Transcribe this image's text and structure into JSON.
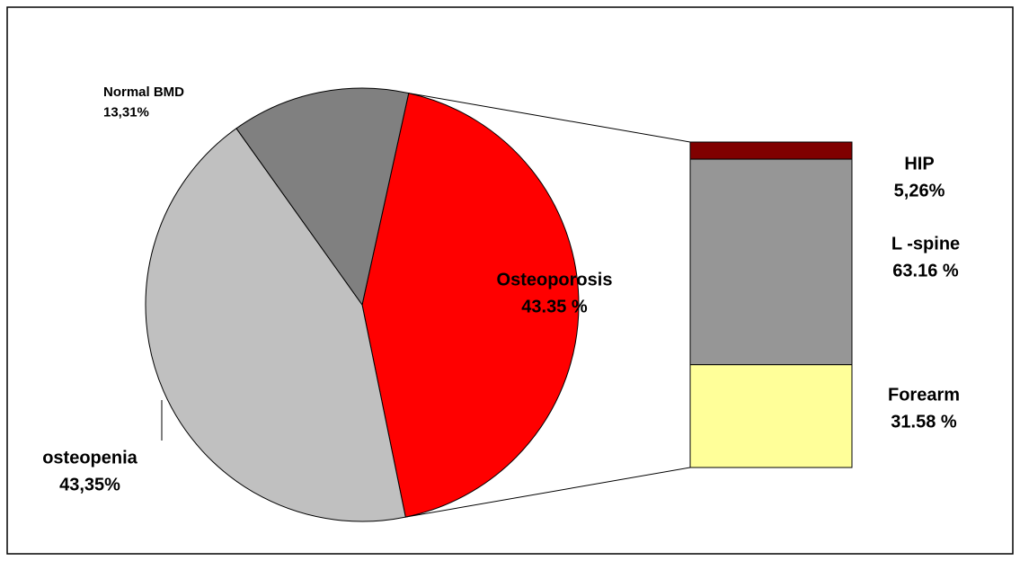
{
  "chart_data": [
    {
      "type": "pie",
      "categories": [
        "Osteoporosis",
        "osteopenia",
        "Normal BMD"
      ],
      "values": [
        43.35,
        43.35,
        13.31
      ],
      "value_labels": [
        "43.35 %",
        "43,35%",
        "13,31%"
      ],
      "colors": [
        "#ff0000",
        "#c0c0c0",
        "#808080"
      ]
    },
    {
      "type": "stacked-bar",
      "categories": [
        "HIP",
        "L -spine",
        "Forearm"
      ],
      "values": [
        5.26,
        63.16,
        31.58
      ],
      "value_labels": [
        "5,26%",
        "63.16 %",
        "31.58 %"
      ],
      "colors": [
        "#800000",
        "#969696",
        "#ffff99"
      ]
    }
  ]
}
